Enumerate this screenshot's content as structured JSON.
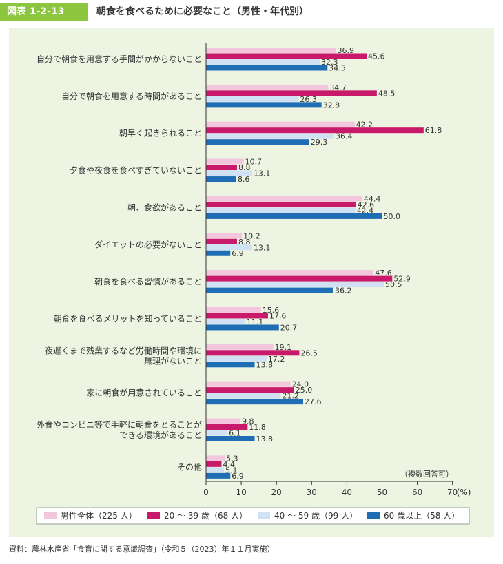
{
  "header": {
    "figure_label": "図表 1-2-13",
    "title": "朝食を食べるために必要なこと（男性・年代別）"
  },
  "source": "資料：農林水産省「食育に関する意識調査」（令和５（2023）年１１月実施）",
  "colors": {
    "accent": "#8cc63f",
    "panel_background": "#eef4e2"
  },
  "chart_data": {
    "type": "bar",
    "orientation": "horizontal",
    "title": "",
    "xlabel": "",
    "unit_label": "(%)",
    "note": "（複数回答可）",
    "xlim": [
      0,
      70
    ],
    "xticks": [
      0,
      10,
      20,
      30,
      40,
      50,
      60,
      70
    ],
    "grid": false,
    "legend_position": "bottom",
    "categories": [
      "自分で朝食を用意する手間がかからないこと",
      "自分で朝食を用意する時間があること",
      "朝早く起きられること",
      "夕食や夜食を食べすぎていないこと",
      "朝、食欲があること",
      "ダイエットの必要がないこと",
      "朝食を食べる習慣があること",
      "朝食を食べるメリットを知っていること",
      "夜遅くまで残業するなど労働時間や環境に\n無理がないこと",
      "家に朝食が用意されていること",
      "外食やコンビニ等で手軽に朝食をとることが\nできる環境があること",
      "その他"
    ],
    "series": [
      {
        "name": "男性全体（225 人）",
        "color": "#f2c6dd",
        "values": [
          36.9,
          34.7,
          42.2,
          10.7,
          44.4,
          10.2,
          47.6,
          15.6,
          19.1,
          24.0,
          9.8,
          5.3
        ]
      },
      {
        "name": "20 ～ 39 歳（68 人）",
        "color": "#c8196b",
        "values": [
          45.6,
          48.5,
          61.8,
          8.8,
          42.6,
          8.8,
          52.9,
          17.6,
          26.5,
          25.0,
          11.8,
          4.4
        ]
      },
      {
        "name": "40 ～ 59 歳（99 人）",
        "color": "#cfe1f2",
        "values": [
          32.3,
          26.3,
          36.4,
          13.1,
          42.4,
          13.1,
          50.5,
          11.1,
          17.2,
          21.2,
          6.1,
          5.1
        ]
      },
      {
        "name": "60 歳以上（58 人）",
        "color": "#1f6eb5",
        "values": [
          34.5,
          32.8,
          29.3,
          8.6,
          50.0,
          6.9,
          36.2,
          20.7,
          13.8,
          27.6,
          13.8,
          6.9
        ]
      }
    ]
  }
}
